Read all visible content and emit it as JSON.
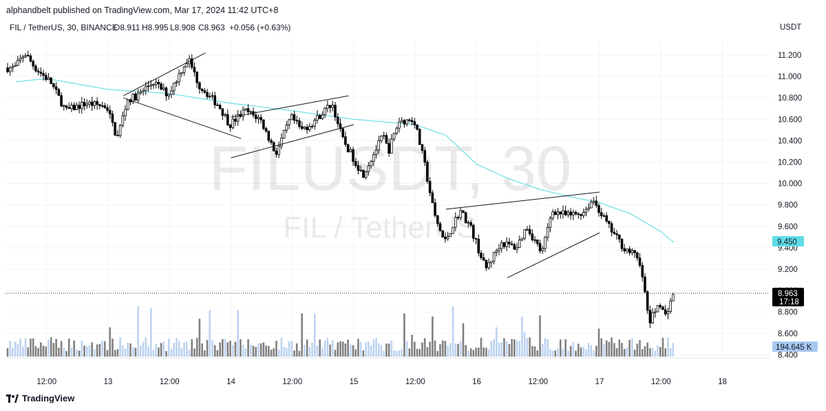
{
  "header": {
    "published": "alphandbelt published on TradingView.com, Mar 17, 2024 11:42 UTC+8"
  },
  "legend": {
    "symbol": "FIL / TetherUS, 30, BINANCE",
    "open": "O8.911",
    "high": "H8.995",
    "low": "L8.908",
    "close": "C8.963",
    "change": "+0.056 (+0.63%)"
  },
  "watermark": {
    "main": "FILUSDT, 30",
    "sub": "FIL / TetherUS"
  },
  "price_axis": {
    "currency": "USDT",
    "ticks": [
      "11.200",
      "11.000",
      "10.800",
      "10.600",
      "10.400",
      "10.200",
      "10.000",
      "9.800",
      "9.600",
      "9.400",
      "9.200",
      "9.000",
      "8.800",
      "8.600",
      "8.400"
    ],
    "ma_label": "9.450",
    "last_price": "8.963",
    "countdown": "17:18",
    "volume_label": "194.645 K"
  },
  "time_axis": {
    "ticks": [
      "12:00",
      "13",
      "12:00",
      "14",
      "12:00",
      "15",
      "12:00",
      "16",
      "12:00",
      "17",
      "12:00",
      "18"
    ]
  },
  "footer": {
    "brand": "TradingView"
  },
  "colors": {
    "up_candle": "#ffffff",
    "down_candle": "#000000",
    "candle_border": "#000000",
    "moving_average": "#7fe3e8",
    "volume_up": "#bcd3f0",
    "volume_down": "#808080",
    "ma_badge": "#5fdce6",
    "volume_badge": "#a8c8f0",
    "last_badge": "#000000"
  },
  "chart_data": {
    "type": "candlestick",
    "title": "",
    "symbol": "FIL / TetherUS",
    "interval": "30",
    "exchange": "BINANCE",
    "ylim": [
      8.35,
      11.45
    ],
    "x_range": [
      "2024-03-12 06:00",
      "2024-03-18 12:00"
    ],
    "grid": true,
    "series": [
      {
        "kind": "price_path",
        "points": [
          [
            "2024-03-12 06:00",
            11.08
          ],
          [
            "2024-03-12 08:00",
            11.22
          ],
          [
            "2024-03-12 10:00",
            11.08
          ],
          [
            "2024-03-12 13:00",
            10.95
          ],
          [
            "2024-03-12 16:00",
            10.68
          ],
          [
            "2024-03-12 20:00",
            10.75
          ],
          [
            "2024-03-13 00:00",
            10.72
          ],
          [
            "2024-03-13 02:00",
            10.42
          ],
          [
            "2024-03-13 04:00",
            10.78
          ],
          [
            "2024-03-13 06:00",
            10.82
          ],
          [
            "2024-03-13 09:00",
            10.95
          ],
          [
            "2024-03-13 12:00",
            10.83
          ],
          [
            "2024-03-13 15:00",
            11.1
          ],
          [
            "2024-03-13 16:00",
            11.16
          ],
          [
            "2024-03-13 18:00",
            10.92
          ],
          [
            "2024-03-13 22:00",
            10.72
          ],
          [
            "2024-03-14 00:00",
            10.55
          ],
          [
            "2024-03-14 03:00",
            10.68
          ],
          [
            "2024-03-14 06:00",
            10.6
          ],
          [
            "2024-03-14 09:00",
            10.28
          ],
          [
            "2024-03-14 12:00",
            10.62
          ],
          [
            "2024-03-14 14:00",
            10.5
          ],
          [
            "2024-03-14 16:00",
            10.56
          ],
          [
            "2024-03-14 20:00",
            10.75
          ],
          [
            "2024-03-14 22:00",
            10.42
          ],
          [
            "2024-03-15 02:00",
            10.08
          ],
          [
            "2024-03-15 06:00",
            10.45
          ],
          [
            "2024-03-15 07:00",
            10.3
          ],
          [
            "2024-03-15 09:00",
            10.58
          ],
          [
            "2024-03-15 12:00",
            10.6
          ],
          [
            "2024-03-15 14:00",
            10.2
          ],
          [
            "2024-03-15 16:00",
            9.7
          ],
          [
            "2024-03-15 18:00",
            9.45
          ],
          [
            "2024-03-15 21:00",
            9.75
          ],
          [
            "2024-03-15 23:00",
            9.6
          ],
          [
            "2024-03-16 02:00",
            9.2
          ],
          [
            "2024-03-16 05:00",
            9.45
          ],
          [
            "2024-03-16 08:00",
            9.4
          ],
          [
            "2024-03-16 10:00",
            9.6
          ],
          [
            "2024-03-16 13:00",
            9.35
          ],
          [
            "2024-03-16 15:00",
            9.75
          ],
          [
            "2024-03-16 18:00",
            9.7
          ],
          [
            "2024-03-16 21:00",
            9.73
          ],
          [
            "2024-03-16 23:00",
            9.85
          ],
          [
            "2024-03-17 02:00",
            9.6
          ],
          [
            "2024-03-17 05:00",
            9.4
          ],
          [
            "2024-03-17 08:00",
            9.3
          ],
          [
            "2024-03-17 10:00",
            8.7
          ],
          [
            "2024-03-17 12:00",
            8.9
          ],
          [
            "2024-03-17 13:00",
            8.75
          ],
          [
            "2024-03-17 14:30",
            8.96
          ]
        ]
      },
      {
        "kind": "moving_average",
        "points": [
          [
            "2024-03-12 06:00",
            10.95
          ],
          [
            "2024-03-12 12:00",
            10.98
          ],
          [
            "2024-03-13 00:00",
            10.88
          ],
          [
            "2024-03-13 12:00",
            10.84
          ],
          [
            "2024-03-14 00:00",
            10.75
          ],
          [
            "2024-03-14 12:00",
            10.68
          ],
          [
            "2024-03-15 00:00",
            10.6
          ],
          [
            "2024-03-15 12:00",
            10.55
          ],
          [
            "2024-03-15 18:00",
            10.45
          ],
          [
            "2024-03-16 00:00",
            10.18
          ],
          [
            "2024-03-16 06:00",
            10.05
          ],
          [
            "2024-03-16 12:00",
            9.95
          ],
          [
            "2024-03-16 18:00",
            9.88
          ],
          [
            "2024-03-17 00:00",
            9.82
          ],
          [
            "2024-03-17 06:00",
            9.72
          ],
          [
            "2024-03-17 12:00",
            9.55
          ],
          [
            "2024-03-17 14:30",
            9.45
          ]
        ]
      }
    ],
    "trendlines": [
      [
        [
          "2024-03-13 03:00",
          10.82
        ],
        [
          "2024-03-13 19:00",
          11.22
        ]
      ],
      [
        [
          "2024-03-13 03:00",
          10.8
        ],
        [
          "2024-03-14 02:00",
          10.42
        ]
      ],
      [
        [
          "2024-03-14 00:00",
          10.62
        ],
        [
          "2024-03-14 23:00",
          10.82
        ]
      ],
      [
        [
          "2024-03-14 00:00",
          10.24
        ],
        [
          "2024-03-15 00:00",
          10.55
        ]
      ],
      [
        [
          "2024-03-15 18:00",
          9.76
        ],
        [
          "2024-03-17 00:00",
          9.92
        ]
      ],
      [
        [
          "2024-03-16 06:00",
          9.12
        ],
        [
          "2024-03-17 00:00",
          9.54
        ]
      ]
    ]
  }
}
